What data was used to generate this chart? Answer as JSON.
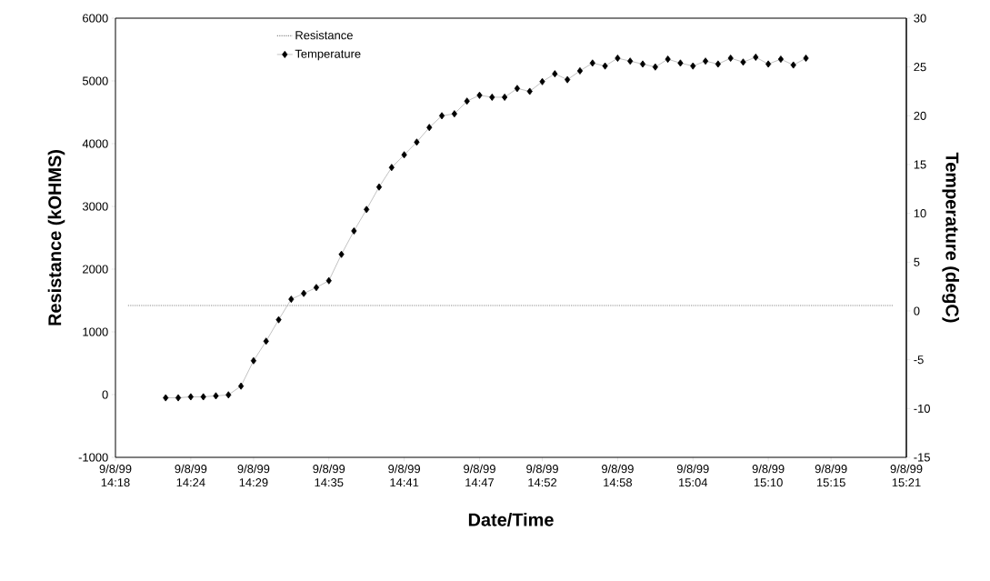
{
  "chart_data": {
    "type": "line",
    "xlabel": "Date/Time",
    "ylabel": "Resistance (kOHMS)",
    "y2label": "Temperature (degC)",
    "xlim": [
      "1999-09-08T14:18",
      "1999-09-08T15:21"
    ],
    "xticks": [
      {
        "value": "1999-09-08T14:18",
        "label": "9/8/99 14:18"
      },
      {
        "value": "1999-09-08T14:24",
        "label": "9/8/99 14:24"
      },
      {
        "value": "1999-09-08T14:29",
        "label": "9/8/99 14:29"
      },
      {
        "value": "1999-09-08T14:35",
        "label": "9/8/99 14:35"
      },
      {
        "value": "1999-09-08T14:41",
        "label": "9/8/99 14:41"
      },
      {
        "value": "1999-09-08T14:47",
        "label": "9/8/99 14:47"
      },
      {
        "value": "1999-09-08T14:52",
        "label": "9/8/99 14:52"
      },
      {
        "value": "1999-09-08T14:58",
        "label": "9/8/99 14:58"
      },
      {
        "value": "1999-09-08T15:04",
        "label": "9/8/99 15:04"
      },
      {
        "value": "1999-09-08T15:10",
        "label": "9/8/99 15:10"
      },
      {
        "value": "1999-09-08T15:15",
        "label": "9/8/99 15:15"
      },
      {
        "value": "1999-09-08T15:21",
        "label": "9/8/99 15:21"
      }
    ],
    "ylim": [
      -1000,
      6000
    ],
    "yticks": [
      -1000,
      0,
      1000,
      2000,
      3000,
      4000,
      5000,
      6000
    ],
    "y2lim": [
      -15,
      30
    ],
    "y2ticks": [
      -15,
      -10,
      -5,
      0,
      5,
      10,
      15,
      20,
      25,
      30
    ],
    "legend": "top left",
    "marker": "diamond",
    "line_style": "solid",
    "series": [
      {
        "name": "Resistance",
        "color": "#8c8c8c",
        "axis": "y",
        "line_style": "dotted",
        "marker": "none",
        "x": [
          "1999-09-08T14:19",
          "1999-09-08T15:20"
        ],
        "values": [
          1420,
          1420
        ]
      },
      {
        "name": "Temperature",
        "color": "#000000",
        "axis": "y2",
        "x": [
          "1999-09-08T14:22",
          "1999-09-08T14:23",
          "1999-09-08T14:24",
          "1999-09-08T14:25",
          "1999-09-08T14:26",
          "1999-09-08T14:27",
          "1999-09-08T14:28",
          "1999-09-08T14:29",
          "1999-09-08T14:30",
          "1999-09-08T14:31",
          "1999-09-08T14:32",
          "1999-09-08T14:33",
          "1999-09-08T14:34",
          "1999-09-08T14:35",
          "1999-09-08T14:36",
          "1999-09-08T14:37",
          "1999-09-08T14:38",
          "1999-09-08T14:39",
          "1999-09-08T14:40",
          "1999-09-08T14:41",
          "1999-09-08T14:42",
          "1999-09-08T14:43",
          "1999-09-08T14:44",
          "1999-09-08T14:45",
          "1999-09-08T14:46",
          "1999-09-08T14:47",
          "1999-09-08T14:48",
          "1999-09-08T14:49",
          "1999-09-08T14:50",
          "1999-09-08T14:51",
          "1999-09-08T14:52",
          "1999-09-08T14:53",
          "1999-09-08T14:54",
          "1999-09-08T14:55",
          "1999-09-08T14:56",
          "1999-09-08T14:57",
          "1999-09-08T14:58",
          "1999-09-08T14:59",
          "1999-09-08T15:00",
          "1999-09-08T15:01",
          "1999-09-08T15:02",
          "1999-09-08T15:03",
          "1999-09-08T15:04",
          "1999-09-08T15:05",
          "1999-09-08T15:06",
          "1999-09-08T15:07",
          "1999-09-08T15:08",
          "1999-09-08T15:09",
          "1999-09-08T15:10",
          "1999-09-08T15:11",
          "1999-09-08T15:12",
          "1999-09-08T15:13"
        ],
        "values": [
          -8.9,
          -8.9,
          -8.8,
          -8.8,
          -8.7,
          -8.6,
          -7.7,
          -5.1,
          -3.1,
          -0.9,
          1.2,
          1.8,
          2.4,
          3.1,
          5.8,
          8.2,
          10.4,
          12.7,
          14.7,
          16.0,
          17.3,
          18.8,
          20.0,
          20.2,
          21.5,
          22.1,
          21.9,
          21.9,
          22.8,
          22.5,
          23.5,
          24.3,
          23.7,
          24.6,
          25.4,
          25.1,
          25.9,
          25.6,
          25.3,
          25.0,
          25.8,
          25.4,
          25.1,
          25.6,
          25.3,
          25.9,
          25.5,
          26.0,
          25.3,
          25.8,
          25.2,
          25.9
        ]
      }
    ]
  }
}
